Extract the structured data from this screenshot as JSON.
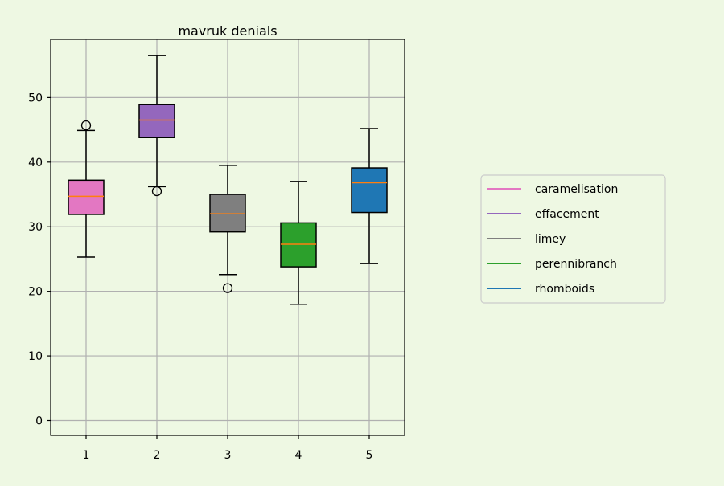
{
  "chart_data": {
    "type": "box",
    "title": "mavruk denials",
    "xlabel": "",
    "ylabel": "",
    "ylim": [
      -2.3,
      59.0
    ],
    "yticks": [
      0,
      10,
      20,
      30,
      40,
      50
    ],
    "categories": [
      "1",
      "2",
      "3",
      "4",
      "5"
    ],
    "grid": true,
    "legend_position": "right",
    "series": [
      {
        "name": "caramelisation",
        "color": "#e377c2",
        "whisker_low": 25.3,
        "q1": 31.9,
        "median": 34.7,
        "q3": 37.2,
        "whisker_high": 44.9,
        "outliers": [
          45.7
        ]
      },
      {
        "name": "effacement",
        "color": "#9467bd",
        "whisker_low": 36.2,
        "q1": 43.8,
        "median": 46.5,
        "q3": 48.9,
        "whisker_high": 56.5,
        "outliers": [
          35.5
        ]
      },
      {
        "name": "limey",
        "color": "#7f7f7f",
        "whisker_low": 22.6,
        "q1": 29.2,
        "median": 32.0,
        "q3": 35.0,
        "whisker_high": 39.5,
        "outliers": [
          20.5
        ]
      },
      {
        "name": "perennibranch",
        "color": "#2ca02c",
        "whisker_low": 18.0,
        "q1": 23.8,
        "median": 27.3,
        "q3": 30.6,
        "whisker_high": 37.0,
        "outliers": []
      },
      {
        "name": "rhomboids",
        "color": "#1f77b4",
        "whisker_low": 24.3,
        "q1": 32.2,
        "median": 36.8,
        "q3": 39.1,
        "whisker_high": 45.2,
        "outliers": []
      }
    ],
    "median_color": "#ff7f0e",
    "grid_color": "#b0b0b0",
    "background_color": "#eef8e3"
  }
}
